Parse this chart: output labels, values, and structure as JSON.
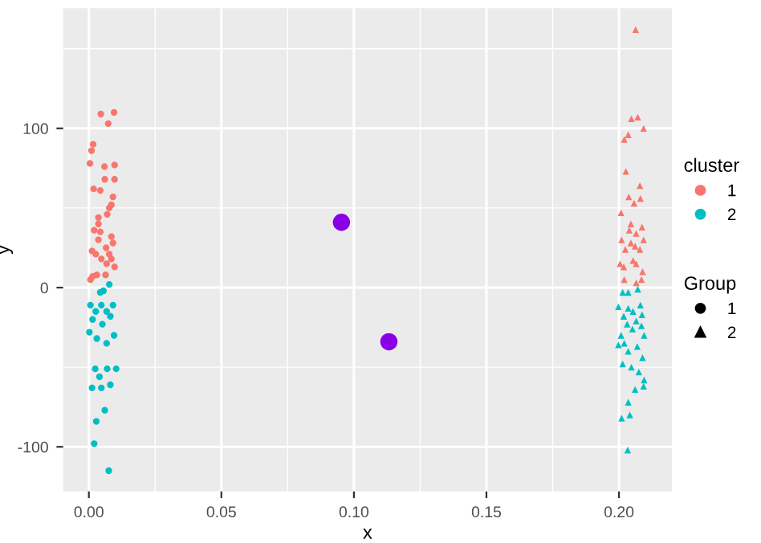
{
  "chart_data": {
    "type": "scatter",
    "xlabel": "x",
    "ylabel": "y",
    "xlim": [
      -0.0097,
      0.22
    ],
    "ylim": [
      -128,
      175.5
    ],
    "xticks": [
      {
        "value": 0,
        "label": "0.00"
      },
      0.05,
      {
        "value": 0.1,
        "label": "0.10"
      },
      0.15,
      {
        "value": 0.2,
        "label": "0.20"
      }
    ],
    "yticks": [
      -100,
      0,
      100
    ],
    "grid": true,
    "legend": "right",
    "legend_title": "cluster",
    "annotations": [
      "Group",
      "1",
      "2"
    ],
    "series": [
      {
        "name": "1",
        "color": "#f8766d",
        "marker": "circle",
        "x": [
          0.0045,
          0.0095,
          0.0073,
          0.0016,
          0.001,
          0.0004,
          0.0059,
          0.0097,
          0.006,
          0.0097,
          0.0018,
          0.0043,
          0.0091,
          0.0085,
          0.0077,
          0.0069,
          0.0036,
          0.0036,
          0.002,
          0.0043,
          0.0085,
          0.0036,
          0.0091,
          0.0065,
          0.0012,
          0.0026,
          0.0077,
          0.0085,
          0.0047,
          0.0067,
          0.0097,
          0.0014,
          0.003,
          0.0063,
          0.0006
        ],
        "values": [
          109,
          110,
          103,
          90,
          86,
          78,
          76,
          77,
          68,
          68,
          62,
          61,
          57,
          52,
          50,
          46,
          44,
          40,
          36,
          35,
          32,
          30,
          28,
          25,
          23,
          21,
          21,
          18,
          18,
          15,
          13,
          7,
          8,
          8,
          5
        ]
      },
      {
        "name": "2",
        "color": "#00bfc4",
        "marker": "circle",
        "x": [
          0.0077,
          0.0043,
          0.0055,
          0.0006,
          0.0047,
          0.0091,
          0.0026,
          0.0067,
          0.0014,
          0.0081,
          0.0051,
          0.0002,
          0.003,
          0.0095,
          0.0067,
          0.0024,
          0.0069,
          0.0103,
          0.004,
          0.0012,
          0.0047,
          0.0081,
          0.006,
          0.0028,
          0.002,
          0.0075
        ],
        "values": [
          2,
          -3,
          -2,
          -11,
          -11,
          -11,
          -15,
          -15,
          -20,
          -18,
          -23,
          -28,
          -32,
          -30,
          -35,
          -51,
          -51,
          -51,
          -56,
          -63,
          -63,
          -61,
          -77,
          -84,
          -98,
          -115
        ]
      },
      {
        "color": "#f8766d",
        "marker": "triangle",
        "x": [
          0.2063,
          0.2047,
          0.2071,
          0.2093,
          0.2035,
          0.202,
          0.2026,
          0.2079,
          0.2037,
          0.2081,
          0.2057,
          0.2008,
          0.2045,
          0.2039,
          0.2087,
          0.2065,
          0.201,
          0.2045,
          0.2093,
          0.2061,
          0.2024,
          0.2079,
          0.2053,
          0.2004,
          0.2018,
          0.2065,
          0.2089,
          0.202,
          0.2085,
          0.2065
        ],
        "values": [
          162,
          106,
          107,
          100,
          96,
          93,
          73,
          64,
          57,
          56,
          53,
          47,
          40,
          36,
          38,
          34,
          30,
          28,
          30,
          26,
          24,
          24,
          17,
          15,
          13,
          15,
          10,
          5,
          5,
          3
        ]
      },
      {
        "color": "#00bfc4",
        "marker": "triangle",
        "x": [
          0.2071,
          0.2014,
          0.2035,
          0.1998,
          0.2035,
          0.2081,
          0.2053,
          0.2018,
          0.2087,
          0.2065,
          0.2031,
          0.2085,
          0.2051,
          0.2095,
          0.2008,
          0.202,
          0.2069,
          0.1998,
          0.2035,
          0.2089,
          0.2014,
          0.2047,
          0.2075,
          0.2061,
          0.2093,
          0.2095,
          0.2035,
          0.2041,
          0.201,
          0.2033
        ],
        "values": [
          -1,
          -3,
          -3,
          -12,
          -13,
          -11,
          -15,
          -18,
          -17,
          -21,
          -23,
          -24,
          -26,
          -30,
          -30,
          -35,
          -37,
          -36,
          -40,
          -44,
          -48,
          -50,
          -53,
          -64,
          -62,
          -58,
          -72,
          -80,
          -82,
          -102
        ]
      },
      {
        "type": "bubble",
        "color": "#8a00e6",
        "marker": "circle",
        "x": [
          0.0953,
          0.1132
        ],
        "values": [
          41,
          -34
        ],
        "sizes": [
          1,
          1
        ]
      }
    ]
  }
}
